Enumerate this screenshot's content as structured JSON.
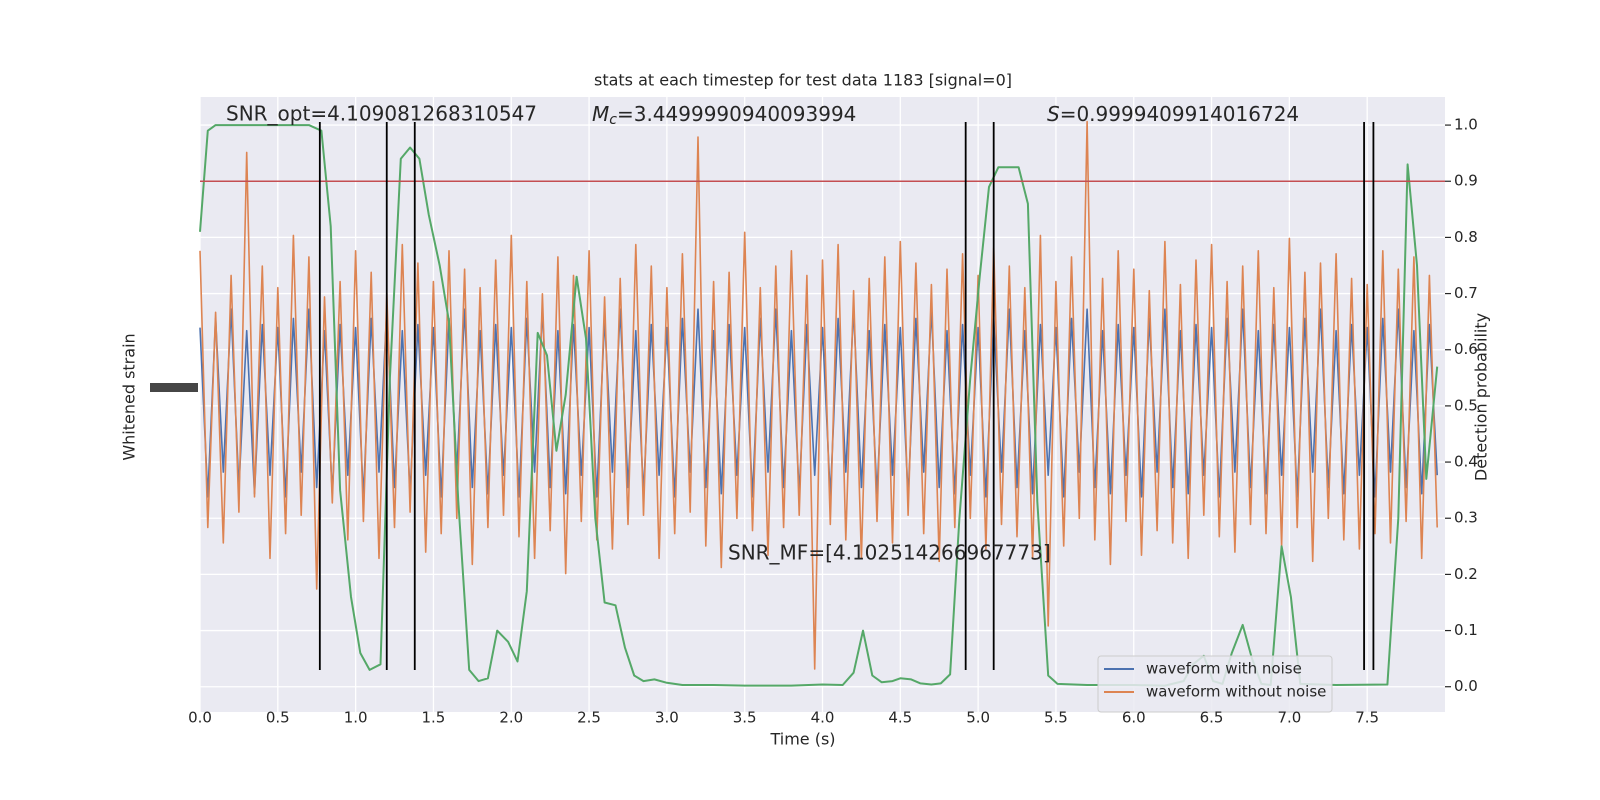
{
  "chart_data": {
    "type": "line",
    "title": "stats at each timestep for test data 1183 [signal=0]",
    "xlabel": "Time (s)",
    "ylabel": "Whitened strain",
    "y2label": "Detection probability",
    "xlim": [
      0,
      8
    ],
    "xticks": [
      {
        "value": 0,
        "label": "0.0"
      },
      0.5,
      {
        "value": 1,
        "label": "1.0"
      },
      1.5,
      {
        "value": 2,
        "label": "2.0"
      },
      2.5,
      {
        "value": 3,
        "label": "3.0"
      },
      3.5,
      {
        "value": 4,
        "label": "4.0"
      },
      4.5,
      {
        "value": 5,
        "label": "5.0"
      },
      5.5,
      {
        "value": 6,
        "label": "6.0"
      },
      6.5,
      {
        "value": 7,
        "label": "7.0"
      },
      7.5
    ],
    "ylim": [
      -1,
      1
    ],
    "y2lim": [
      -0.045,
      1.05
    ],
    "y2ticks": [
      {
        "value": 0,
        "label": "0.0"
      },
      0.1,
      0.2,
      0.3,
      0.4,
      0.5,
      0.6,
      0.7,
      0.8,
      0.9,
      {
        "value": 1,
        "label": "1.0"
      }
    ],
    "grid": true,
    "legend": "lower right",
    "x": [
      0,
      0.05,
      0.1,
      0.15,
      0.2,
      0.25,
      0.3,
      0.35,
      0.4,
      0.45,
      0.5,
      0.55,
      0.6,
      0.65,
      0.7,
      0.75,
      0.8,
      0.85,
      0.9,
      0.95,
      1,
      1.05,
      1.1,
      1.15,
      1.2,
      1.25,
      1.3,
      1.35,
      1.4,
      1.45,
      1.5,
      1.55,
      1.6,
      1.65,
      1.7,
      1.75,
      1.8,
      1.85,
      1.9,
      1.95,
      2,
      2.05,
      2.1,
      2.15,
      2.2,
      2.25,
      2.3,
      2.35,
      2.4,
      2.45,
      2.5,
      2.55,
      2.6,
      2.65,
      2.7,
      2.75,
      2.8,
      2.85,
      2.9,
      2.95,
      3,
      3.05,
      3.1,
      3.15,
      3.2,
      3.25,
      3.3,
      3.35,
      3.4,
      3.45,
      3.5,
      3.55,
      3.6,
      3.65,
      3.7,
      3.75,
      3.8,
      3.85,
      3.9,
      3.95,
      4,
      4.05,
      4.1,
      4.15,
      4.2,
      4.25,
      4.3,
      4.35,
      4.4,
      4.45,
      4.5,
      4.55,
      4.6,
      4.65,
      4.7,
      4.75,
      4.8,
      4.85,
      4.9,
      4.95,
      5,
      5.05,
      5.1,
      5.15,
      5.2,
      5.25,
      5.3,
      5.35,
      5.4,
      5.45,
      5.5,
      5.55,
      5.6,
      5.65,
      5.7,
      5.75,
      5.8,
      5.85,
      5.9,
      5.95,
      6,
      6.05,
      6.1,
      6.15,
      6.2,
      6.25,
      6.3,
      6.35,
      6.4,
      6.45,
      6.5,
      6.55,
      6.6,
      6.65,
      6.7,
      6.75,
      6.8,
      6.85,
      6.9,
      6.95,
      7,
      7.05,
      7.1,
      7.15,
      7.2,
      7.25,
      7.3,
      7.35,
      7.4,
      7.45,
      7.5,
      7.55,
      7.6,
      7.65,
      7.7,
      7.75,
      7.8,
      7.85,
      7.9,
      7.95
    ],
    "series": [
      {
        "name": "waveform with noise",
        "color": "#4c72b0",
        "values": [
          0.25,
          -0.3,
          0.28,
          -0.22,
          0.31,
          -0.27,
          0.24,
          -0.29,
          0.26,
          -0.23,
          0.25,
          -0.3,
          0.28,
          -0.22,
          0.31,
          -0.27,
          0.24,
          -0.29,
          0.26,
          -0.23,
          0.25,
          -0.3,
          0.28,
          -0.22,
          0.31,
          -0.27,
          0.24,
          -0.29,
          0.26,
          -0.23,
          0.25,
          -0.3,
          0.28,
          -0.22,
          0.31,
          -0.27,
          0.24,
          -0.29,
          0.26,
          -0.23,
          0.25,
          -0.3,
          0.28,
          -0.22,
          0.31,
          -0.27,
          0.24,
          -0.29,
          0.26,
          -0.23,
          0.25,
          -0.3,
          0.28,
          -0.22,
          0.31,
          -0.27,
          0.24,
          -0.29,
          0.26,
          -0.23,
          0.25,
          -0.3,
          0.28,
          -0.22,
          0.31,
          -0.27,
          0.24,
          -0.29,
          0.26,
          -0.23,
          0.25,
          -0.3,
          0.28,
          -0.22,
          0.31,
          -0.27,
          0.24,
          -0.29,
          0.26,
          -0.23,
          0.25,
          -0.3,
          0.28,
          -0.22,
          0.31,
          -0.27,
          0.24,
          -0.29,
          0.26,
          -0.23,
          0.25,
          -0.3,
          0.28,
          -0.22,
          0.31,
          -0.27,
          0.24,
          -0.29,
          0.26,
          -0.23,
          0.25,
          -0.3,
          0.28,
          -0.22,
          0.31,
          -0.27,
          0.24,
          -0.29,
          0.26,
          -0.23,
          0.25,
          -0.3,
          0.28,
          -0.22,
          0.31,
          -0.27,
          0.24,
          -0.29,
          0.26,
          -0.23,
          0.25,
          -0.3,
          0.28,
          -0.22,
          0.31,
          -0.27,
          0.24,
          -0.29,
          0.26,
          -0.23,
          0.25,
          -0.3,
          0.28,
          -0.22,
          0.31,
          -0.27,
          0.24,
          -0.29,
          0.26,
          -0.23,
          0.25,
          -0.3,
          0.28,
          -0.22,
          0.31,
          -0.27,
          0.24,
          -0.29,
          0.26,
          -0.23,
          0.25,
          -0.3,
          0.28,
          -0.22,
          0.31,
          -0.27,
          0.24,
          -0.29,
          0.26,
          -0.23
        ]
      },
      {
        "name": "waveform without noise",
        "color": "#dd8452",
        "values": [
          0.5,
          -0.4,
          0.3,
          -0.45,
          0.42,
          -0.35,
          0.82,
          -0.3,
          0.45,
          -0.5,
          0.38,
          -0.42,
          0.55,
          -0.36,
          0.48,
          -0.6,
          0.35,
          -0.32,
          0.4,
          -0.44,
          0.5,
          -0.38,
          0.43,
          -0.5,
          0.36,
          -0.4,
          0.52,
          -0.35,
          0.46,
          -0.48,
          0.4,
          -0.42,
          0.5,
          -0.37,
          0.44,
          -0.52,
          0.38,
          -0.4,
          0.47,
          -0.36,
          0.55,
          -0.43,
          0.4,
          -0.5,
          0.36,
          -0.41,
          0.48,
          -0.55,
          0.42,
          -0.38,
          0.5,
          -0.44,
          0.35,
          -0.47,
          0.41,
          -0.39,
          0.52,
          -0.36,
          0.45,
          -0.5,
          0.38,
          -0.42,
          0.49,
          -0.35,
          0.87,
          -0.46,
          0.4,
          -0.53,
          0.43,
          -0.37,
          0.56,
          -0.41,
          0.38,
          -0.49,
          0.45,
          -0.4,
          0.5,
          -0.36,
          0.42,
          -0.86,
          0.47,
          -0.39,
          0.52,
          -0.44,
          0.37,
          -0.5,
          0.41,
          -0.38,
          0.48,
          -0.45,
          0.53,
          -0.36,
          0.46,
          -0.42,
          0.39,
          -0.51,
          0.44,
          -0.4,
          0.49,
          -0.37,
          0.42,
          -0.47,
          0.51,
          -0.39,
          0.45,
          -0.43,
          0.38,
          -0.5,
          0.55,
          -0.72,
          0.4,
          -0.46,
          0.48,
          -0.37,
          0.92,
          -0.44,
          0.41,
          -0.52,
          0.5,
          -0.38,
          0.44,
          -0.49,
          0.37,
          -0.41,
          0.53,
          -0.45,
          0.39,
          -0.5,
          0.47,
          -0.36,
          0.52,
          -0.43,
          0.4,
          -0.48,
          0.45,
          -0.39,
          0.5,
          -0.42,
          0.38,
          -0.46,
          0.54,
          -0.4,
          0.43,
          -0.51,
          0.46,
          -0.37,
          0.49,
          -0.44,
          0.41,
          -0.47,
          0.39,
          -0.42,
          0.5,
          -0.45,
          0.44,
          -0.38,
          0.48,
          -0.5,
          0.42,
          -0.4
        ]
      },
      {
        "color": "#55a868",
        "axis": "y2",
        "x": [
          0,
          0.05,
          0.1,
          0.4,
          0.7,
          0.78,
          0.84,
          0.9,
          0.97,
          1.03,
          1.09,
          1.16,
          1.22,
          1.29,
          1.35,
          1.41,
          1.47,
          1.54,
          1.6,
          1.66,
          1.73,
          1.79,
          1.85,
          1.91,
          1.98,
          2.04,
          2.1,
          2.17,
          2.23,
          2.29,
          2.35,
          2.42,
          2.48,
          2.54,
          2.6,
          2.67,
          2.73,
          2.79,
          2.85,
          2.92,
          3,
          3.1,
          3.3,
          3.5,
          3.8,
          4,
          4.13,
          4.2,
          4.26,
          4.32,
          4.38,
          4.45,
          4.5,
          4.57,
          4.63,
          4.7,
          4.76,
          4.82,
          4.88,
          4.95,
          5.01,
          5.07,
          5.13,
          5.2,
          5.26,
          5.32,
          5.38,
          5.45,
          5.51,
          5.7,
          6,
          6.2,
          6.32,
          6.38,
          6.45,
          6.51,
          6.57,
          6.63,
          6.7,
          6.76,
          6.82,
          6.88,
          6.95,
          7.01,
          7.07,
          7.3,
          7.63,
          7.7,
          7.76,
          7.82,
          7.88,
          7.95
        ],
        "values": [
          0.81,
          0.99,
          1,
          1,
          1,
          0.99,
          0.82,
          0.35,
          0.16,
          0.06,
          0.03,
          0.04,
          0.55,
          0.94,
          0.96,
          0.94,
          0.84,
          0.75,
          0.65,
          0.33,
          0.03,
          0.01,
          0.015,
          0.1,
          0.08,
          0.045,
          0.17,
          0.63,
          0.59,
          0.42,
          0.52,
          0.73,
          0.62,
          0.3,
          0.15,
          0.145,
          0.07,
          0.02,
          0.01,
          0.013,
          0.007,
          0.003,
          0.003,
          0.002,
          0.002,
          0.004,
          0.003,
          0.025,
          0.1,
          0.02,
          0.008,
          0.01,
          0.015,
          0.013,
          0.006,
          0.004,
          0.006,
          0.022,
          0.3,
          0.55,
          0.73,
          0.89,
          0.925,
          0.925,
          0.925,
          0.86,
          0.33,
          0.02,
          0.005,
          0.003,
          0.003,
          0.002,
          0.01,
          0.04,
          0.055,
          0.01,
          0.005,
          0.06,
          0.11,
          0.05,
          0.005,
          0.003,
          0.25,
          0.16,
          0.005,
          0.003,
          0.004,
          0.3,
          0.93,
          0.75,
          0.37,
          0.57
        ]
      }
    ],
    "threshold": {
      "value": 0.9,
      "axis": "y2",
      "color": "#c44e52"
    },
    "vlines": {
      "color": "#000000",
      "x": [
        0.77,
        1.2,
        1.38,
        4.92,
        5.1,
        7.48,
        7.54
      ]
    },
    "annotations": {
      "snr_opt": "SNR_opt=4.109081268310547",
      "mc": {
        "base": "M",
        "sub": "c",
        "rest": "=3.4499990940093994"
      },
      "s": {
        "base": "S",
        "rest": "=0.9999409914016724"
      },
      "snr_mf": "SNR_MF=[4.102514266967773]"
    }
  }
}
